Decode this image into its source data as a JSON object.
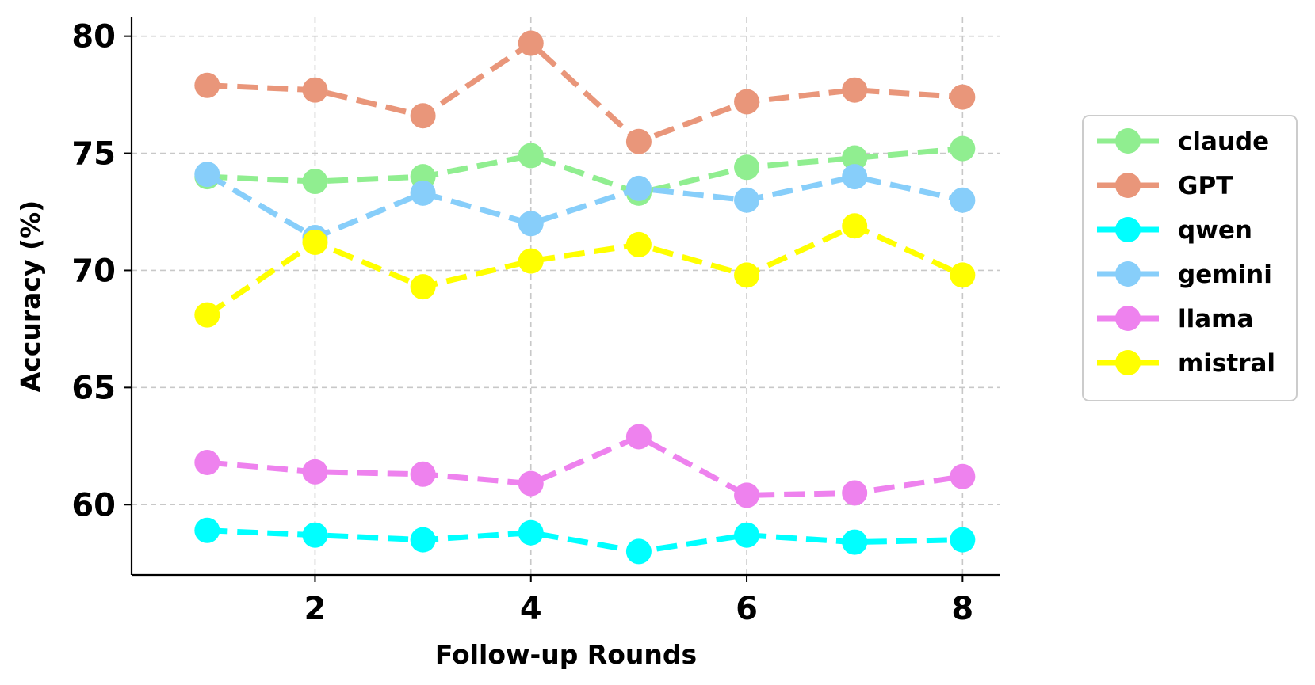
{
  "chart_data": {
    "type": "line",
    "title": "",
    "xlabel": "Follow-up Rounds",
    "ylabel": "Accuracy (%)",
    "x": [
      1,
      2,
      3,
      4,
      5,
      6,
      7,
      8
    ],
    "xlim": [
      0.3,
      8.35
    ],
    "ylim": [
      57.0,
      80.8
    ],
    "xticks": [
      2,
      4,
      6,
      8
    ],
    "yticks": [
      60,
      65,
      70,
      75,
      80
    ],
    "xtick_labels": [
      "2",
      "4",
      "6",
      "8"
    ],
    "ytick_labels": [
      "60",
      "65",
      "70",
      "75",
      "80"
    ],
    "grid": true,
    "line_style": "dashed",
    "marker": "circle",
    "legend": {
      "position": "right"
    },
    "series": [
      {
        "name": "claude",
        "color": "#90EE90",
        "values": [
          74.0,
          73.8,
          74.0,
          74.9,
          73.3,
          74.4,
          74.8,
          75.2
        ]
      },
      {
        "name": "GPT",
        "color": "#E9967A",
        "values": [
          77.9,
          77.7,
          76.6,
          79.7,
          75.5,
          77.2,
          77.7,
          77.4
        ]
      },
      {
        "name": "qwen",
        "color": "#00FFFF",
        "values": [
          58.9,
          58.7,
          58.5,
          58.8,
          58.0,
          58.7,
          58.4,
          58.5
        ]
      },
      {
        "name": "gemini",
        "color": "#87CEFA",
        "values": [
          74.1,
          71.4,
          73.3,
          72.0,
          73.5,
          73.0,
          74.0,
          73.0
        ]
      },
      {
        "name": "llama",
        "color": "#EE82EE",
        "values": [
          61.8,
          61.4,
          61.3,
          60.9,
          62.9,
          60.4,
          60.5,
          61.2
        ]
      },
      {
        "name": "mistral",
        "color": "#FFFF00",
        "values": [
          68.1,
          71.2,
          69.3,
          70.4,
          71.1,
          69.8,
          71.9,
          69.8
        ]
      }
    ]
  }
}
